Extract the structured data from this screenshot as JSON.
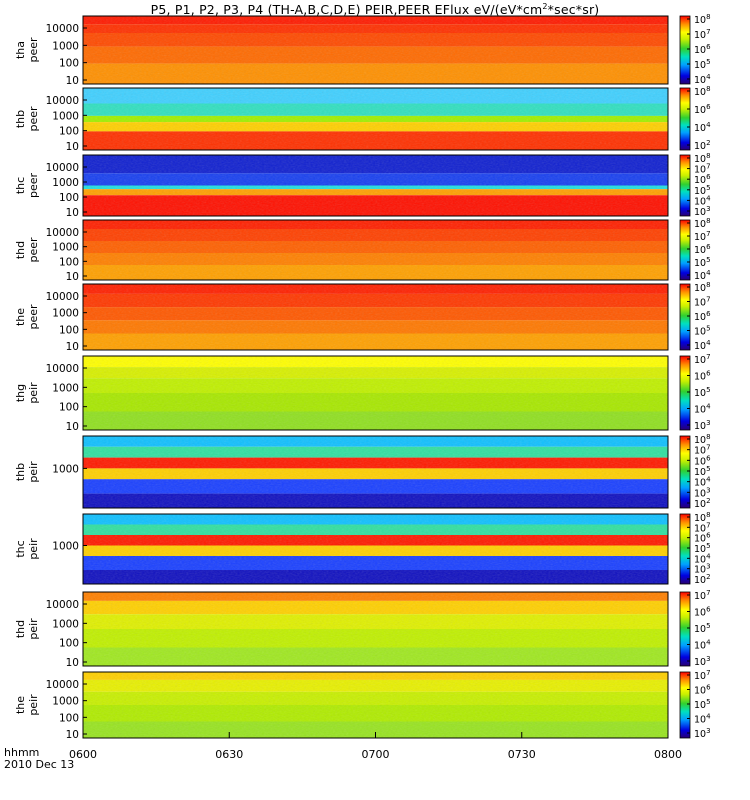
{
  "title_parts": [
    "P5, P1, P2, P3, P4 (TH-A,B,C,D,E) PEIR,PEER EFlux eV/(eV*cm",
    "2",
    "*sec*sr)"
  ],
  "footer": {
    "time_label": "hhmm",
    "date_label": "2010 Dec 13"
  },
  "chart_data": {
    "type": "heatmap",
    "title": "P5, P1, P2, P3, P4 (TH-A,B,C,D,E) PEIR,PEER EFlux eV/(eV*cm2*sec*sr)",
    "x_ticks": [
      "0600",
      "0630",
      "0700",
      "0730",
      "0800"
    ],
    "x_range": [
      "0600",
      "0800"
    ],
    "panels": [
      {
        "id": "tha-peer",
        "ylabel": [
          "tha",
          "peer"
        ],
        "yticks": [
          "10000",
          "1000",
          "100",
          "10"
        ],
        "cbar_ticks": [
          "10^8",
          "10^7",
          "10^6",
          "10^5",
          "10^4"
        ],
        "description": "electron flux, mostly red/orange, yellow at low energies"
      },
      {
        "id": "thb-peer",
        "ylabel": [
          "thb",
          "peer"
        ],
        "yticks": [
          "10000",
          "1000",
          "100",
          "10"
        ],
        "cbar_ticks": [
          "10^8",
          "10^6",
          "10^4",
          "10^2"
        ],
        "description": "cyan noisy band at high energy, red at low energy"
      },
      {
        "id": "thc-peer",
        "ylabel": [
          "thc",
          "peer"
        ],
        "yticks": [
          "10000",
          "1000",
          "100",
          "10"
        ],
        "cbar_ticks": [
          "10^8",
          "10^7",
          "10^6",
          "10^5",
          "10^4",
          "10^3"
        ],
        "description": "blue noisy band at high energy, red at low energy"
      },
      {
        "id": "thd-peer",
        "ylabel": [
          "thd",
          "peer"
        ],
        "yticks": [
          "10000",
          "1000",
          "100",
          "10"
        ],
        "cbar_ticks": [
          "10^8",
          "10^7",
          "10^6",
          "10^5",
          "10^4"
        ],
        "description": "orange/red with yellow at low energies late"
      },
      {
        "id": "the-peer",
        "ylabel": [
          "the",
          "peer"
        ],
        "yticks": [
          "10000",
          "1000",
          "100",
          "10"
        ],
        "cbar_ticks": [
          "10^8",
          "10^7",
          "10^6",
          "10^5",
          "10^4"
        ],
        "description": "orange/red, yellow patches"
      },
      {
        "id": "thb-peir-a",
        "ylabel": [
          "thg",
          "peir"
        ],
        "yticks": [
          "10000",
          "1000",
          "100",
          "10"
        ],
        "cbar_ticks": [
          "10^7",
          "10^6",
          "10^5",
          "10^4",
          "10^3"
        ],
        "description": "ion flux, yellow/green"
      },
      {
        "id": "thb-peir",
        "ylabel": [
          "thb",
          "peir"
        ],
        "yticks": [
          "1000"
        ],
        "cbar_ticks": [
          "10^8",
          "10^7",
          "10^6",
          "10^5",
          "10^4",
          "10^3",
          "10^2"
        ],
        "description": "horizontal bands: cyan, green, red, yellow, blue"
      },
      {
        "id": "thc-peir",
        "ylabel": [
          "thc",
          "peir"
        ],
        "yticks": [
          "1000"
        ],
        "cbar_ticks": [
          "10^8",
          "10^7",
          "10^6",
          "10^5",
          "10^4",
          "10^3",
          "10^2"
        ],
        "description": "horizontal bands: cyan, green, red, yellow, blue"
      },
      {
        "id": "thd-peir",
        "ylabel": [
          "thd",
          "peir"
        ],
        "yticks": [
          "10000",
          "1000",
          "100",
          "10"
        ],
        "cbar_ticks": [
          "10^7",
          "10^6",
          "10^5",
          "10^4",
          "10^3"
        ],
        "description": "ion flux, yellow/green"
      },
      {
        "id": "the-peir",
        "ylabel": [
          "the",
          "peir"
        ],
        "yticks": [
          "10000",
          "1000",
          "100",
          "10"
        ],
        "cbar_ticks": [
          "10^7",
          "10^6",
          "10^5",
          "10^4",
          "10^3"
        ],
        "description": "ion flux, yellow/green"
      }
    ]
  }
}
